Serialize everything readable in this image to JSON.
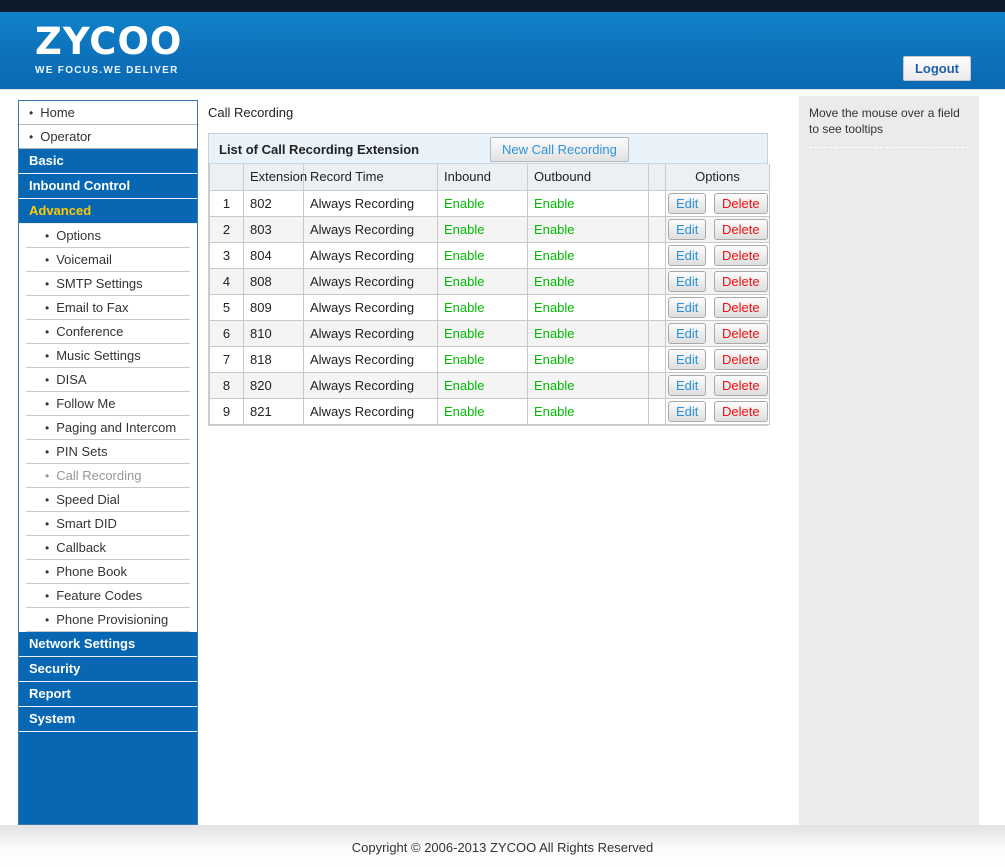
{
  "header": {
    "logo_text": "ZYCOO",
    "tagline": "WE FOCUS.WE DELIVER",
    "logout_label": "Logout"
  },
  "icons": {
    "bullet": "•"
  },
  "sidebar": {
    "items": [
      {
        "label": "Home",
        "type": "link"
      },
      {
        "label": "Operator",
        "type": "link"
      },
      {
        "label": "Basic",
        "type": "section"
      },
      {
        "label": "Inbound Control",
        "type": "section"
      },
      {
        "label": "Advanced",
        "type": "section",
        "state": "active"
      },
      {
        "label": "Options",
        "type": "sub"
      },
      {
        "label": "Voicemail",
        "type": "sub"
      },
      {
        "label": "SMTP Settings",
        "type": "sub"
      },
      {
        "label": "Email to Fax",
        "type": "sub"
      },
      {
        "label": "Conference",
        "type": "sub"
      },
      {
        "label": "Music Settings",
        "type": "sub"
      },
      {
        "label": "DISA",
        "type": "sub"
      },
      {
        "label": "Follow Me",
        "type": "sub"
      },
      {
        "label": "Paging and Intercom",
        "type": "sub"
      },
      {
        "label": "PIN Sets",
        "type": "sub"
      },
      {
        "label": "Call Recording",
        "type": "sub",
        "state": "current"
      },
      {
        "label": "Speed Dial",
        "type": "sub"
      },
      {
        "label": "Smart DID",
        "type": "sub"
      },
      {
        "label": "Callback",
        "type": "sub"
      },
      {
        "label": "Phone Book",
        "type": "sub"
      },
      {
        "label": "Feature Codes",
        "type": "sub"
      },
      {
        "label": "Phone Provisioning",
        "type": "sub"
      },
      {
        "label": "Network Settings",
        "type": "section"
      },
      {
        "label": "Security",
        "type": "section"
      },
      {
        "label": "Report",
        "type": "section"
      },
      {
        "label": "System",
        "type": "section"
      }
    ]
  },
  "main": {
    "page_title": "Call Recording",
    "panel": {
      "title": "List of Call Recording Extension",
      "new_button_label": "New Call Recording",
      "table": {
        "headers": {
          "row_num": "",
          "extension": "Extension",
          "record_time": "Record Time",
          "inbound": "Inbound",
          "outbound": "Outbound",
          "spacer": "",
          "options": "Options"
        },
        "edit_label": "Edit",
        "delete_label": "Delete",
        "rows": [
          {
            "num": "1",
            "extension": "802",
            "record_time": "Always Recording",
            "inbound": "Enable",
            "outbound": "Enable"
          },
          {
            "num": "2",
            "extension": "803",
            "record_time": "Always Recording",
            "inbound": "Enable",
            "outbound": "Enable"
          },
          {
            "num": "3",
            "extension": "804",
            "record_time": "Always Recording",
            "inbound": "Enable",
            "outbound": "Enable"
          },
          {
            "num": "4",
            "extension": "808",
            "record_time": "Always Recording",
            "inbound": "Enable",
            "outbound": "Enable"
          },
          {
            "num": "5",
            "extension": "809",
            "record_time": "Always Recording",
            "inbound": "Enable",
            "outbound": "Enable"
          },
          {
            "num": "6",
            "extension": "810",
            "record_time": "Always Recording",
            "inbound": "Enable",
            "outbound": "Enable"
          },
          {
            "num": "7",
            "extension": "818",
            "record_time": "Always Recording",
            "inbound": "Enable",
            "outbound": "Enable"
          },
          {
            "num": "8",
            "extension": "820",
            "record_time": "Always Recording",
            "inbound": "Enable",
            "outbound": "Enable"
          },
          {
            "num": "9",
            "extension": "821",
            "record_time": "Always Recording",
            "inbound": "Enable",
            "outbound": "Enable"
          }
        ]
      }
    }
  },
  "tooltip_panel": {
    "text": "Move the mouse over a field to see tooltips"
  },
  "footer": {
    "copyright": "Copyright © 2006-2013 ZYCOO All Rights Reserved"
  },
  "colors": {
    "top_strip": "#0C1C2C",
    "header_gradient_top": "#1184CB",
    "header_gradient_bottom": "#0A69B3",
    "sidebar_section_blue": "#0867B2",
    "active_section_yellow": "#FFC800",
    "current_item_gray": "#979797",
    "enable_green": "#00BB00",
    "edit_blue": "#2A92D8",
    "delete_red": "#EE1111",
    "panel_header_bg": "#E9F1F9",
    "tooltip_panel_bg": "#EBEBEB"
  }
}
